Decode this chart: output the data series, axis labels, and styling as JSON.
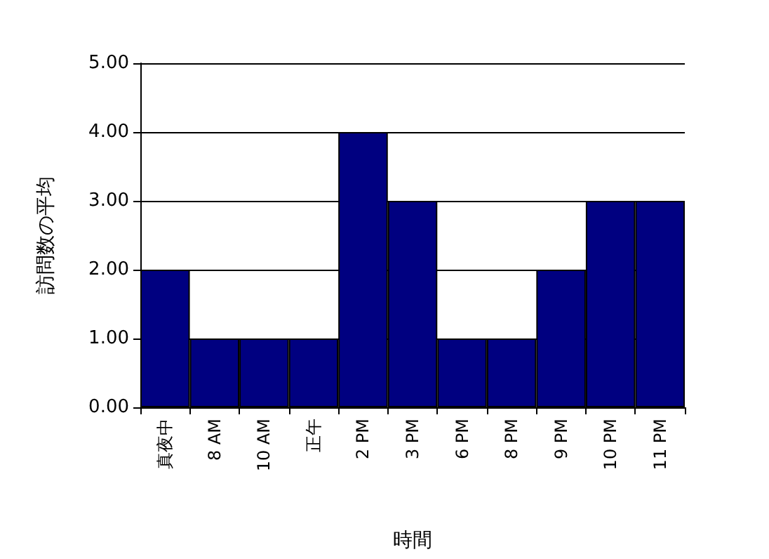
{
  "chart_data": {
    "type": "bar",
    "xlabel": "時間",
    "ylabel": "訪問数の平均",
    "categories": [
      "真夜中",
      "8 AM",
      "10 AM",
      "正午",
      "2 PM",
      "3 PM",
      "6 PM",
      "8 PM",
      "9 PM",
      "10 PM",
      "11 PM"
    ],
    "values": [
      2,
      1,
      1,
      1,
      4,
      3,
      1,
      1,
      2,
      3,
      3
    ],
    "color": "#000080",
    "ylim": [
      0,
      5
    ],
    "yticks": [
      {
        "value": 0,
        "label": "0.00"
      },
      {
        "value": 1,
        "label": "1.00"
      },
      {
        "value": 2,
        "label": "2.00"
      },
      {
        "value": 3,
        "label": "3.00"
      },
      {
        "value": 4,
        "label": "4.00"
      },
      {
        "value": 5,
        "label": "5.00"
      }
    ],
    "grid": "y"
  }
}
